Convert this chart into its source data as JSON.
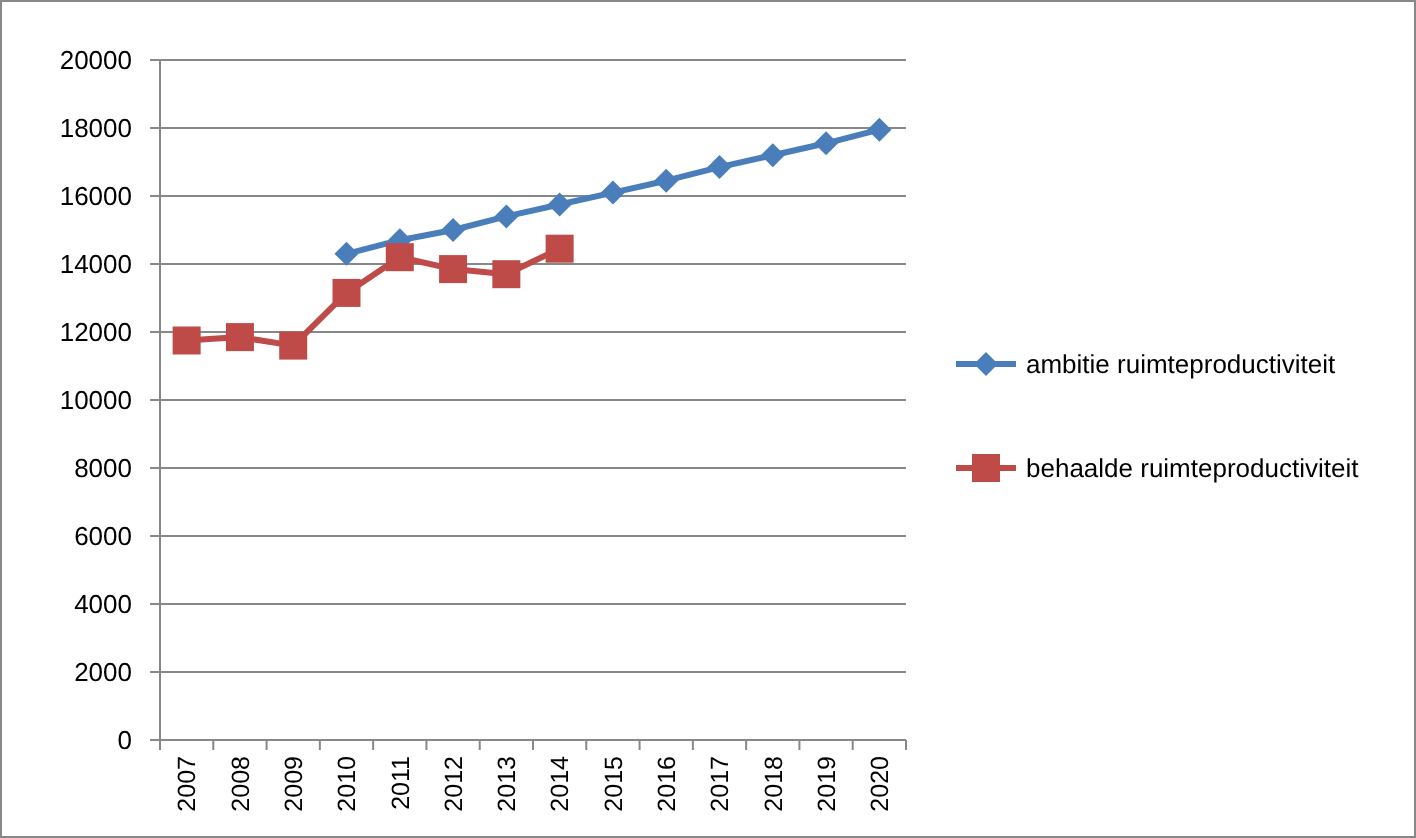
{
  "chart_data": {
    "type": "line",
    "categories": [
      "2007",
      "2008",
      "2009",
      "2010",
      "2011",
      "2012",
      "2013",
      "2014",
      "2015",
      "2016",
      "2017",
      "2018",
      "2019",
      "2020"
    ],
    "series": [
      {
        "name": "ambitie ruimteproductiviteit",
        "color": "#4a7ebb",
        "marker": "diamond",
        "values": [
          null,
          null,
          null,
          14300,
          14700,
          15000,
          15400,
          15750,
          16100,
          16450,
          16850,
          17200,
          17550,
          17950
        ]
      },
      {
        "name": "behaalde ruimteproductiviteit",
        "color": "#be4b48",
        "marker": "square",
        "values": [
          11750,
          11850,
          11600,
          13150,
          14200,
          13850,
          13700,
          14450,
          null,
          null,
          null,
          null,
          null,
          null
        ]
      }
    ],
    "ylim": [
      0,
      20000
    ],
    "yticks": [
      0,
      2000,
      4000,
      6000,
      8000,
      10000,
      12000,
      14000,
      16000,
      18000,
      20000
    ],
    "grid": "y",
    "legend": "right"
  }
}
